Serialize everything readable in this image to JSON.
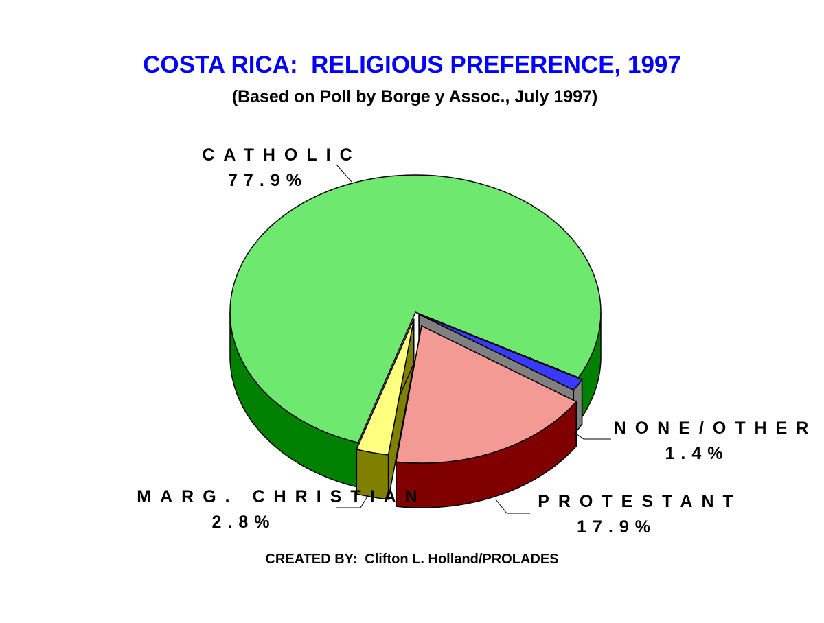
{
  "chart_data": {
    "type": "pie3d",
    "title": "COSTA RICA:  RELIGIOUS PREFERENCE, 1997",
    "subtitle": "(Based on Poll by Borge y Assoc., July 1997)",
    "footer": "CREATED BY:  Clifton L. Holland/PROLADES",
    "categories": [
      "CATHOLIC",
      "NONE/OTHER",
      "PROTESTANT",
      "MARG. CHRISTIAN"
    ],
    "values": [
      77.9,
      1.4,
      17.9,
      2.8
    ],
    "value_labels": [
      "77.9%",
      "1.4%",
      "17.9%",
      "2.8%"
    ],
    "colors": [
      "#6ee86e",
      "#3a3aff",
      "#f49a94",
      "#ffff80"
    ],
    "side_colors": [
      "#008000",
      "#808080",
      "#800000",
      "#808000"
    ]
  }
}
